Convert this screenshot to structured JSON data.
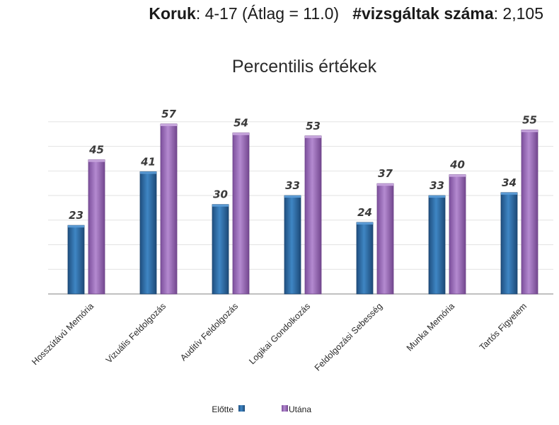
{
  "header": {
    "age_label": "Koruk",
    "age_value": ": 4-17 (Átlag = 11.0)",
    "count_label": "#vizsgáltak száma",
    "count_value": ": 2,105"
  },
  "chart_data": {
    "type": "bar",
    "title": "Percentilis értékek",
    "categories": [
      "Hosszútávú Memória",
      "Vizuális Feldolgozás",
      "Auditív Feldolgozás",
      "Logikai Gondolkozás",
      "Feldolgozási Sebesség",
      "Munka Memória",
      "Tartós Figyelem"
    ],
    "series": [
      {
        "name": "Előtte",
        "values": [
          23,
          41,
          30,
          33,
          24,
          33,
          34
        ],
        "color": "#2e6ca6"
      },
      {
        "name": "Utána",
        "values": [
          45,
          57,
          54,
          53,
          37,
          40,
          55
        ],
        "color": "#9a6cb8"
      }
    ],
    "ylim": [
      0,
      70
    ],
    "grid": true,
    "legend_position": "bottom"
  }
}
